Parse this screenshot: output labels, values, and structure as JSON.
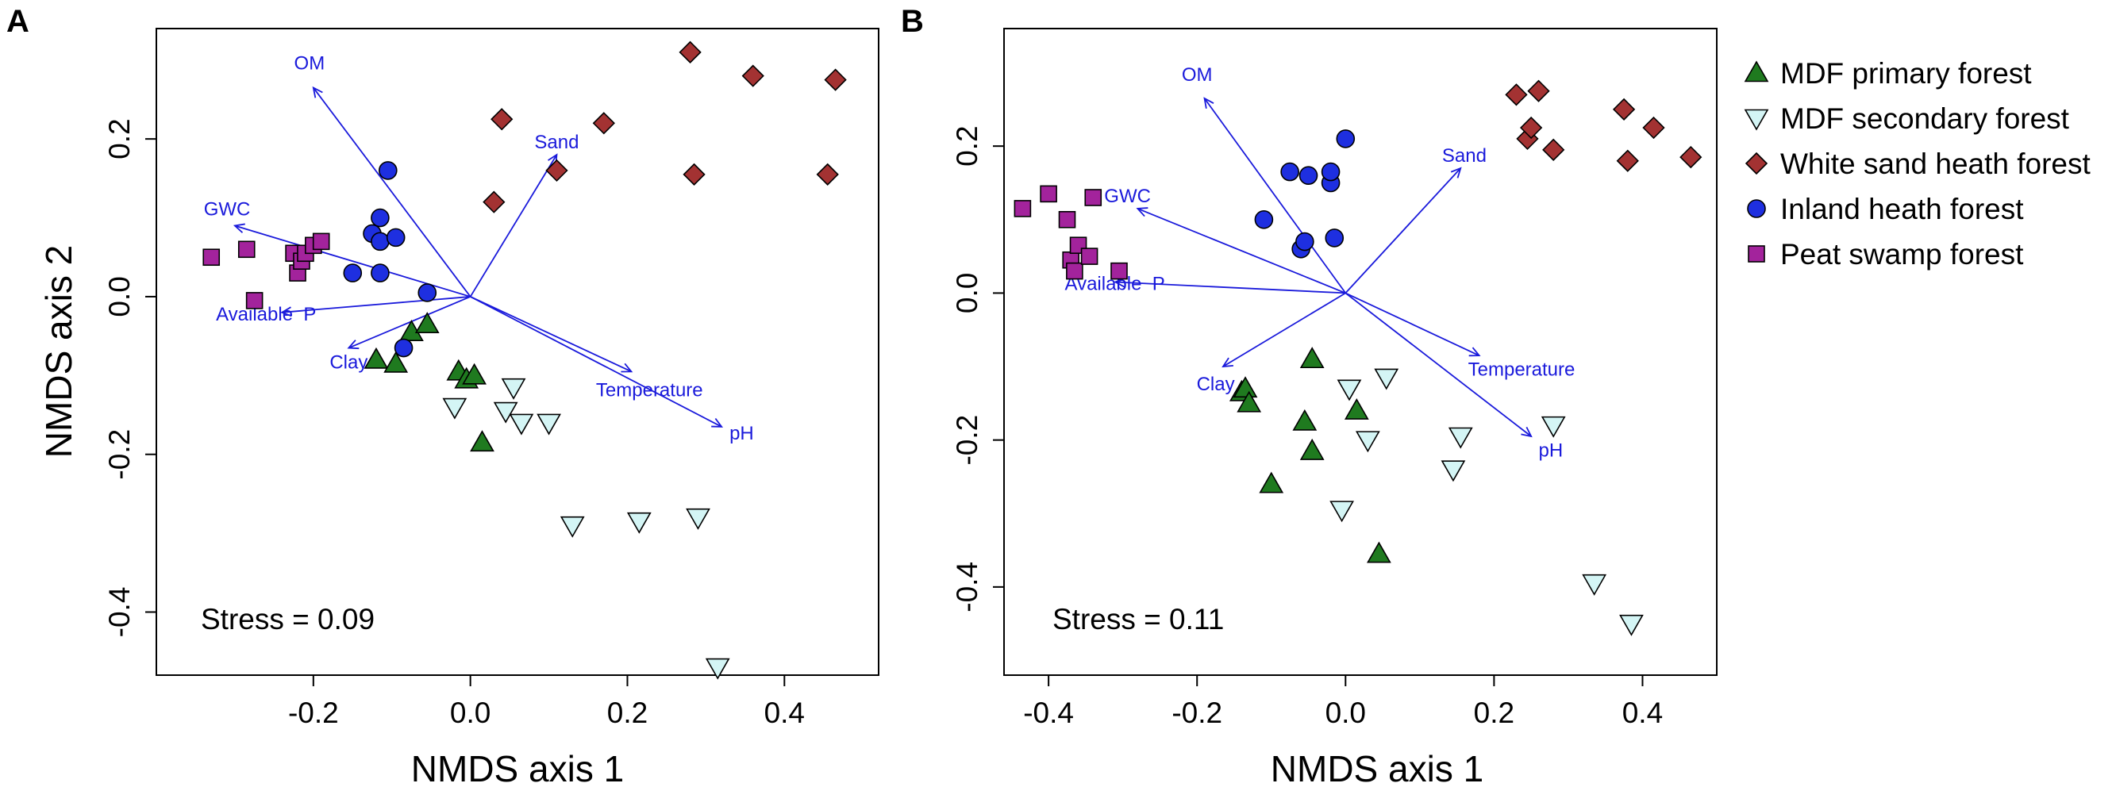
{
  "legend": [
    {
      "name": "MDF primary forest",
      "shape": "triangle-up",
      "fill": "#1f7a1f"
    },
    {
      "name": "MDF secondary forest",
      "shape": "triangle-down",
      "fill": "#d4f5f5"
    },
    {
      "name": "White sand heath forest",
      "shape": "diamond",
      "fill": "#a33232"
    },
    {
      "name": "Inland heath forest",
      "shape": "circle",
      "fill": "#1e2fe0"
    },
    {
      "name": "Peat swamp forest",
      "shape": "square",
      "fill": "#a3239c"
    }
  ],
  "colors": {
    "vector": "#1a1adb",
    "frame": "#000000"
  },
  "chart_data": [
    {
      "panel": "A",
      "type": "scatter",
      "xlabel": "NMDS axis 1",
      "ylabel": "NMDS axis 2",
      "xlim": [
        -0.4,
        0.52
      ],
      "ylim": [
        -0.48,
        0.34
      ],
      "xticks": [
        -0.2,
        0.0,
        0.2,
        0.4
      ],
      "xtick_labels": [
        "-0.2",
        "0.0",
        "0.2",
        "0.4"
      ],
      "yticks": [
        -0.4,
        -0.2,
        0.0,
        0.2
      ],
      "ytick_labels": [
        "-0.4",
        "-0.2",
        "0.0",
        "0.2"
      ],
      "stress": "Stress = 0.09",
      "series": [
        {
          "name": "MDF primary forest",
          "points": [
            [
              -0.12,
              -0.08
            ],
            [
              -0.095,
              -0.085
            ],
            [
              -0.075,
              -0.045
            ],
            [
              -0.055,
              -0.035
            ],
            [
              -0.015,
              -0.095
            ],
            [
              -0.005,
              -0.105
            ],
            [
              0.005,
              -0.1
            ],
            [
              0.015,
              -0.185
            ]
          ]
        },
        {
          "name": "MDF secondary forest",
          "points": [
            [
              -0.02,
              -0.14
            ],
            [
              0.045,
              -0.145
            ],
            [
              0.055,
              -0.115
            ],
            [
              0.065,
              -0.16
            ],
            [
              0.1,
              -0.16
            ],
            [
              0.13,
              -0.29
            ],
            [
              0.215,
              -0.285
            ],
            [
              0.29,
              -0.28
            ],
            [
              0.315,
              -0.47
            ]
          ]
        },
        {
          "name": "White sand heath forest",
          "points": [
            [
              0.03,
              0.12
            ],
            [
              0.04,
              0.225
            ],
            [
              0.11,
              0.16
            ],
            [
              0.17,
              0.22
            ],
            [
              0.28,
              0.31
            ],
            [
              0.285,
              0.155
            ],
            [
              0.36,
              0.28
            ],
            [
              0.455,
              0.155
            ],
            [
              0.465,
              0.275
            ]
          ]
        },
        {
          "name": "Inland heath forest",
          "points": [
            [
              -0.15,
              0.03
            ],
            [
              -0.125,
              0.08
            ],
            [
              -0.115,
              0.03
            ],
            [
              -0.115,
              0.07
            ],
            [
              -0.115,
              0.1
            ],
            [
              -0.105,
              0.16
            ],
            [
              -0.095,
              0.075
            ],
            [
              -0.085,
              -0.065
            ],
            [
              -0.055,
              0.005
            ]
          ]
        },
        {
          "name": "Peat swamp forest",
          "points": [
            [
              -0.33,
              0.05
            ],
            [
              -0.285,
              0.06
            ],
            [
              -0.275,
              -0.005
            ],
            [
              -0.225,
              0.055
            ],
            [
              -0.22,
              0.03
            ],
            [
              -0.215,
              0.045
            ],
            [
              -0.21,
              0.055
            ],
            [
              -0.2,
              0.065
            ],
            [
              -0.19,
              0.07
            ]
          ]
        }
      ],
      "vectors": [
        {
          "label": "OM",
          "x": -0.2,
          "y": 0.265,
          "lx": -0.205,
          "ly": 0.28
        },
        {
          "label": "Sand",
          "x": 0.11,
          "y": 0.18,
          "lx": 0.11,
          "ly": 0.18
        },
        {
          "label": "GWC",
          "x": -0.3,
          "y": 0.09,
          "lx": -0.31,
          "ly": 0.095
        },
        {
          "label": "Available  P",
          "x": -0.24,
          "y": -0.02,
          "lx": -0.24,
          "ly": -0.02
        },
        {
          "label": "Clay",
          "x": -0.155,
          "y": -0.065,
          "lx": -0.155,
          "ly": -0.075
        },
        {
          "label": "Temperature",
          "x": 0.205,
          "y": -0.095,
          "lx": 0.16,
          "ly": -0.11
        },
        {
          "label": "pH",
          "x": 0.32,
          "y": -0.165,
          "lx": 0.33,
          "ly": -0.165
        }
      ]
    },
    {
      "panel": "B",
      "type": "scatter",
      "xlabel": "NMDS axis 1",
      "ylabel": "",
      "xlim": [
        -0.46,
        0.5
      ],
      "ylim": [
        -0.52,
        0.36
      ],
      "xticks": [
        -0.4,
        -0.2,
        0.0,
        0.2,
        0.4
      ],
      "xtick_labels": [
        "-0.4",
        "-0.2",
        "0.0",
        "0.2",
        "0.4"
      ],
      "yticks": [
        -0.4,
        -0.2,
        0.0,
        0.2
      ],
      "ytick_labels": [
        "-0.4",
        "-0.2",
        "0.0",
        "0.2"
      ],
      "stress": "Stress = 0.11",
      "series": [
        {
          "name": "MDF primary forest",
          "points": [
            [
              -0.14,
              -0.135
            ],
            [
              -0.135,
              -0.13
            ],
            [
              -0.13,
              -0.15
            ],
            [
              -0.1,
              -0.26
            ],
            [
              -0.055,
              -0.175
            ],
            [
              -0.045,
              -0.215
            ],
            [
              -0.045,
              -0.09
            ],
            [
              0.015,
              -0.16
            ],
            [
              0.045,
              -0.355
            ]
          ]
        },
        {
          "name": "MDF secondary forest",
          "points": [
            [
              -0.005,
              -0.295
            ],
            [
              0.005,
              -0.13
            ],
            [
              0.03,
              -0.2
            ],
            [
              0.055,
              -0.115
            ],
            [
              0.145,
              -0.24
            ],
            [
              0.155,
              -0.195
            ],
            [
              0.28,
              -0.18
            ],
            [
              0.335,
              -0.395
            ],
            [
              0.385,
              -0.45
            ]
          ]
        },
        {
          "name": "White sand heath forest",
          "points": [
            [
              0.23,
              0.27
            ],
            [
              0.245,
              0.21
            ],
            [
              0.25,
              0.225
            ],
            [
              0.26,
              0.275
            ],
            [
              0.28,
              0.195
            ],
            [
              0.375,
              0.25
            ],
            [
              0.38,
              0.18
            ],
            [
              0.415,
              0.225
            ],
            [
              0.465,
              0.185
            ]
          ]
        },
        {
          "name": "Inland heath forest",
          "points": [
            [
              -0.11,
              0.1
            ],
            [
              -0.075,
              0.165
            ],
            [
              -0.06,
              0.06
            ],
            [
              -0.055,
              0.07
            ],
            [
              -0.05,
              0.16
            ],
            [
              -0.02,
              0.15
            ],
            [
              -0.02,
              0.165
            ],
            [
              -0.015,
              0.075
            ],
            [
              0.0,
              0.21
            ]
          ]
        },
        {
          "name": "Peat swamp forest",
          "points": [
            [
              -0.435,
              0.115
            ],
            [
              -0.4,
              0.135
            ],
            [
              -0.375,
              0.1
            ],
            [
              -0.37,
              0.045
            ],
            [
              -0.365,
              0.03
            ],
            [
              -0.36,
              0.065
            ],
            [
              -0.345,
              0.05
            ],
            [
              -0.34,
              0.13
            ],
            [
              -0.305,
              0.03
            ]
          ]
        }
      ],
      "vectors": [
        {
          "label": "OM",
          "x": -0.19,
          "y": 0.265,
          "lx": -0.2,
          "ly": 0.28
        },
        {
          "label": "Sand",
          "x": 0.155,
          "y": 0.17,
          "lx": 0.16,
          "ly": 0.17
        },
        {
          "label": "GWC",
          "x": -0.28,
          "y": 0.115,
          "lx": -0.325,
          "ly": 0.115
        },
        {
          "label": "Available  P",
          "x": -0.31,
          "y": 0.015,
          "lx": -0.3,
          "ly": 0.015
        },
        {
          "label": "Clay",
          "x": -0.165,
          "y": -0.1,
          "lx": -0.175,
          "ly": -0.115
        },
        {
          "label": "Temperature",
          "x": 0.18,
          "y": -0.085,
          "lx": 0.165,
          "ly": -0.095
        },
        {
          "label": "pH",
          "x": 0.25,
          "y": -0.195,
          "lx": 0.26,
          "ly": -0.205
        }
      ]
    }
  ]
}
